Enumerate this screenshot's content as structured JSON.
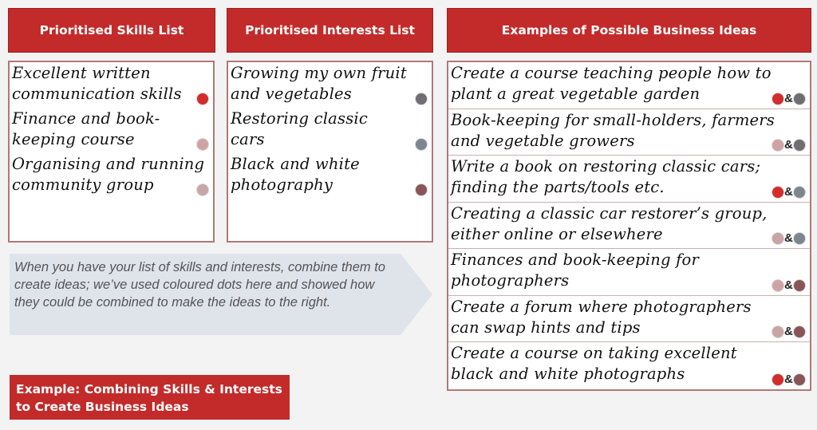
{
  "colors": {
    "header_bg": "#c32a2a",
    "skill_communication": "#d42b2b",
    "skill_finance": "#cfa3a6",
    "skill_community": "#c9a5a5",
    "interest_growing": "#6f6f73",
    "interest_cars": "#7d8591",
    "interest_photography": "#8a5558"
  },
  "headers": {
    "skills": "Prioritised Skills List",
    "interests": "Prioritised Interests  List",
    "ideas": "Examples of Possible Business Ideas"
  },
  "skills": [
    {
      "line1": "Excellent written",
      "line2": "communication skills",
      "dot": "skill_communication"
    },
    {
      "line1": "Finance and book-",
      "line2": "keeping course",
      "dot": "skill_finance"
    },
    {
      "line1": "Organising and running",
      "line2": "community group",
      "dot": "skill_community"
    }
  ],
  "interests": [
    {
      "line1": "Growing my own fruit",
      "line2": "and vegetables",
      "dot": "interest_growing"
    },
    {
      "line1": "Restoring classic",
      "line2": "cars",
      "dot": "interest_cars"
    },
    {
      "line1": "Black and white",
      "line2": "photography",
      "dot": "interest_photography"
    }
  ],
  "ideas": [
    {
      "line1": "Create a course teaching people how to",
      "line2": "plant a great vegetable garden",
      "dot_a": "skill_communication",
      "dot_b": "interest_growing"
    },
    {
      "line1": "Book-keeping for small-holders, farmers",
      "line2": "and vegetable growers",
      "dot_a": "skill_finance",
      "dot_b": "interest_growing"
    },
    {
      "line1": "Write a book on restoring classic cars;",
      "line2": "finding the parts/tools etc.",
      "dot_a": "skill_communication",
      "dot_b": "interest_cars"
    },
    {
      "line1": "Creating a classic car restorer’s group,",
      "line2": "either online or elsewhere",
      "dot_a": "skill_community",
      "dot_b": "interest_cars"
    },
    {
      "line1": "Finances and book-keeping for",
      "line2": "photographers",
      "dot_a": "skill_finance",
      "dot_b": "interest_photography"
    },
    {
      "line1": "Create a forum where photographers",
      "line2": "can swap hints and tips",
      "dot_a": "skill_community",
      "dot_b": "interest_photography"
    },
    {
      "line1": "Create a course on taking excellent",
      "line2": "black and white photographs",
      "dot_a": "skill_communication",
      "dot_b": "interest_photography"
    }
  ],
  "amp": "&",
  "note": "When you have your list of skills and interests, combine them to create ideas; we’ve used coloured dots here and showed how they could be combined to make the ideas to the right.",
  "badge": {
    "line1": "Example: Combining Skills & Interests",
    "line2": "to Create Business Ideas"
  }
}
